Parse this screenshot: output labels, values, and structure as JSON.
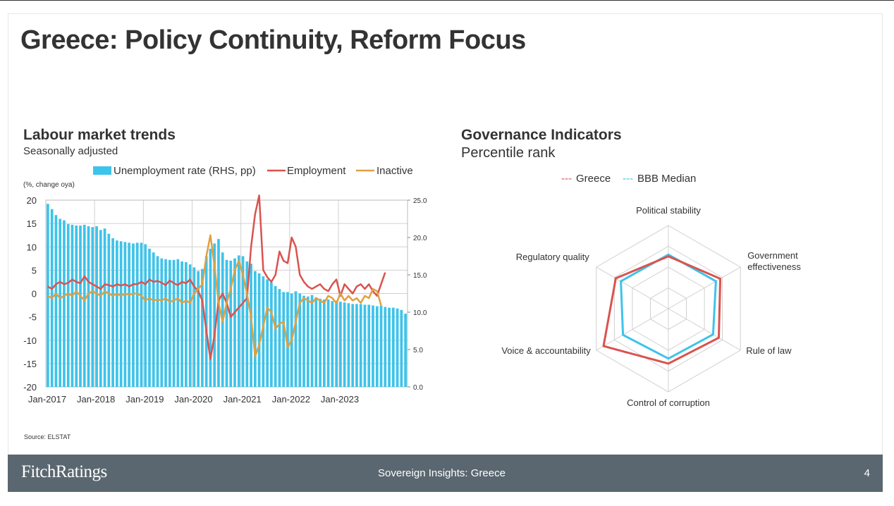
{
  "slide": {
    "title": "Greece: Policy Continuity, Reform Focus",
    "source": "Source: ELSTAT"
  },
  "footer": {
    "brand": "FitchRatings",
    "center": "Sovereign Insights: Greece",
    "page": "4",
    "bg_color": "#5a6770"
  },
  "chart_data": [
    {
      "type": "bar+line",
      "title": "Labour market trends",
      "subtitle": "Seasonally adjusted",
      "unit_label": "(%, change oya)",
      "legend_position": "top",
      "grid": true,
      "x_tick_labels": [
        "Jan-2017",
        "Jan-2018",
        "Jan-2019",
        "Jan-2020",
        "Jan-2021",
        "Jan-2022",
        "Jan-2023"
      ],
      "y_left": {
        "range": [
          -20,
          20
        ],
        "step": 5,
        "tick_labels": [
          "-20",
          "-15",
          "-10",
          "-5",
          "0",
          "5",
          "10",
          "15",
          "20"
        ]
      },
      "y_right": {
        "range": [
          0,
          25
        ],
        "step": 5,
        "tick_labels": [
          "0.0",
          "5.0",
          "10.0",
          "15.0",
          "20.0",
          "25.0"
        ]
      },
      "x_start": "Jan-2017",
      "series": [
        {
          "name": "Unemployment rate (RHS, pp)",
          "type": "bar",
          "axis": "right",
          "color": "#3ec3ea",
          "values": [
            24.5,
            23.8,
            23.0,
            22.5,
            22.3,
            21.8,
            21.7,
            21.6,
            21.6,
            21.7,
            21.5,
            21.4,
            21.5,
            21.0,
            21.2,
            20.5,
            19.9,
            19.6,
            19.5,
            19.4,
            19.3,
            19.2,
            19.3,
            19.3,
            19.1,
            18.5,
            18.0,
            17.5,
            17.2,
            17.1,
            17.0,
            17.0,
            17.1,
            16.8,
            16.7,
            16.4,
            16.0,
            15.5,
            15.8,
            17.5,
            18.5,
            19.2,
            19.8,
            18.0,
            17.0,
            16.9,
            17.2,
            17.6,
            17.5,
            16.8,
            16.5,
            15.5,
            15.2,
            14.8,
            14.4,
            14.0,
            13.5,
            13.1,
            12.7,
            12.7,
            12.5,
            12.8,
            12.5,
            12.2,
            12.1,
            12.3,
            12.0,
            11.8,
            11.7,
            11.7,
            11.5,
            11.5,
            11.4,
            11.3,
            11.2,
            11.1,
            11.1,
            11.1,
            11.0,
            11.0,
            10.9,
            10.8,
            10.9,
            10.7,
            10.6,
            10.6,
            10.5,
            10.3,
            9.8
          ]
        },
        {
          "name": "Employment",
          "type": "line",
          "axis": "left",
          "color": "#d9534f",
          "values": [
            1.5,
            1.0,
            2.0,
            2.5,
            2.0,
            2.3,
            3.0,
            2.5,
            2.2,
            3.7,
            2.5,
            2.0,
            1.5,
            1.0,
            2.0,
            1.8,
            1.5,
            2.0,
            1.7,
            2.0,
            1.5,
            2.0,
            2.0,
            2.5,
            2.0,
            3.0,
            2.5,
            2.7,
            2.3,
            1.8,
            2.8,
            2.2,
            1.8,
            2.5,
            2.2,
            3.0,
            1.5,
            0.5,
            -1.5,
            -8.0,
            -14.0,
            -9.0,
            -1.5,
            0.0,
            -2.0,
            -5.0,
            -4.0,
            -3.0,
            -2.0,
            -1.0,
            10.0,
            17.0,
            21.0,
            5.0,
            3.5,
            2.5,
            4.0,
            9.0,
            7.0,
            6.5,
            12.0,
            10.0,
            4.0,
            2.5,
            1.5,
            1.0,
            1.5,
            2.0,
            1.0,
            0.5,
            2.0,
            3.0,
            -0.5,
            2.0,
            1.0,
            0.0,
            1.5,
            2.0,
            1.0,
            2.0,
            0.5,
            -0.5,
            2.0,
            4.5
          ]
        },
        {
          "name": "Inactive",
          "type": "line",
          "axis": "left",
          "color": "#e0a040",
          "values": [
            -0.5,
            -1.0,
            0.0,
            -1.0,
            -0.5,
            0.0,
            -0.5,
            0.5,
            -0.5,
            -1.5,
            0.0,
            0.5,
            0.0,
            -0.5,
            0.5,
            0.0,
            -0.5,
            0.0,
            -0.5,
            0.0,
            -0.3,
            0.0,
            0.0,
            -0.5,
            -1.5,
            -1.0,
            -1.5,
            -1.3,
            -1.5,
            -1.0,
            -1.8,
            -1.5,
            -1.0,
            -2.0,
            -1.5,
            -2.0,
            0.0,
            1.0,
            2.0,
            8.0,
            12.5,
            6.0,
            -2.0,
            -6.0,
            -2.0,
            1.0,
            5.0,
            7.0,
            4.0,
            0.0,
            -5.0,
            -13.5,
            -11.0,
            -7.0,
            -3.0,
            -4.0,
            -7.5,
            -6.5,
            -6.0,
            -11.5,
            -10.0,
            -6.0,
            -2.0,
            -1.0,
            -1.5,
            -2.0,
            -1.0,
            -1.5,
            -2.0,
            -0.5,
            -1.0,
            -2.0,
            0.0,
            -1.5,
            -0.5,
            -1.5,
            -1.0,
            -2.0,
            -0.5,
            -1.0,
            1.0,
            0.5,
            -2.5
          ]
        }
      ]
    },
    {
      "type": "radar",
      "title": "Governance Indicators",
      "subtitle": "Percentile rank",
      "legend_position": "top",
      "axes": [
        "Political stability",
        "Government\neffectiveness",
        "Rule of law",
        "Control of corruption",
        "Voice & accountability",
        "Regulatory quality"
      ],
      "range": [
        0,
        100
      ],
      "rings": 4,
      "series": [
        {
          "name": "Greece",
          "legend_label": "--- Greece",
          "color": "#d9534f",
          "values": [
            63,
            72,
            70,
            66,
            90,
            73
          ]
        },
        {
          "name": "BBB Median",
          "legend_label": "--- BBB Median",
          "color": "#3ec3ea",
          "values": [
            65,
            66,
            62,
            60,
            63,
            66
          ]
        }
      ]
    }
  ]
}
